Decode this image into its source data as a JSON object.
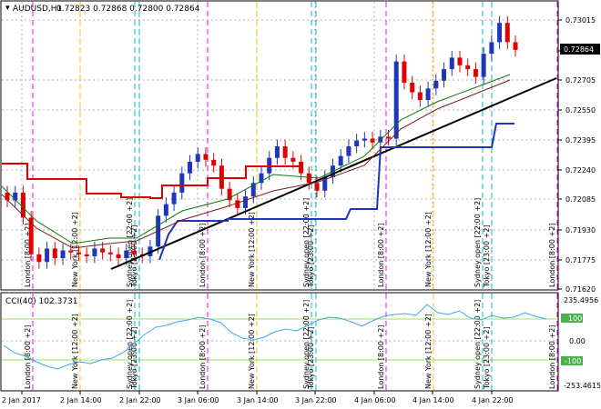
{
  "header": {
    "symbol": "AUDUSD,H1",
    "ohlc": "0.72823 0.72868 0.72800 0.72864"
  },
  "indicator": {
    "label": "CCI(40) 102.3731",
    "level_high": "100",
    "level_low": "-100",
    "range_high": "235.4956",
    "zero": "0.00",
    "range_low": "-253.4615"
  },
  "price_axis": {
    "labels": [
      "0.73015",
      "0.72864",
      "0.72705",
      "0.72550",
      "0.72395",
      "0.72240",
      "0.72085",
      "0.71930",
      "0.71775",
      "0.71620"
    ],
    "current": "0.72864"
  },
  "time_axis": [
    "2 Jan 2017",
    "2 Jan 14:00",
    "2 Jan 22:00",
    "3 Jan 06:00",
    "3 Jan 14:00",
    "3 Jan 22:00",
    "4 Jan 06:00",
    "4 Jan 14:00",
    "4 Jan 22:00"
  ],
  "sessions": [
    {
      "label": "London [8:00 +2]",
      "color": "#ff00ff"
    },
    {
      "label": "New York [12:00 +2]",
      "color": "#ffc000"
    },
    {
      "label": "Sydney open [22:00 +2]",
      "color": "#00c0c0"
    },
    {
      "label": "Tokyo [23:00 +2]",
      "color": "#00c0c0"
    },
    {
      "label": "London [8:00 +2]",
      "color": "#ff00ff"
    },
    {
      "label": "New York [12:00 +2]",
      "color": "#ffc000"
    },
    {
      "label": "Sydney open [22:00 +2]",
      "color": "#00c0c0"
    },
    {
      "label": "Tokyo [23:00 +2]",
      "color": "#00c0c0"
    },
    {
      "label": "London [8:00 +2]",
      "color": "#ff00ff"
    },
    {
      "label": "New York [12:00 +2]",
      "color": "#ffc000"
    },
    {
      "label": "Sydney open [22:00 +2]",
      "color": "#00c0c0"
    },
    {
      "label": "Tokyo [23:00 +2]",
      "color": "#00c0c0"
    },
    {
      "label": "London [8:00 +2]",
      "color": "#ff00ff"
    }
  ],
  "colors": {
    "bull": "#1f36b8",
    "bear": "#e00000",
    "grid": "#b0b0b0",
    "cci": "#3fa9f5",
    "level": "#9be15d"
  }
}
